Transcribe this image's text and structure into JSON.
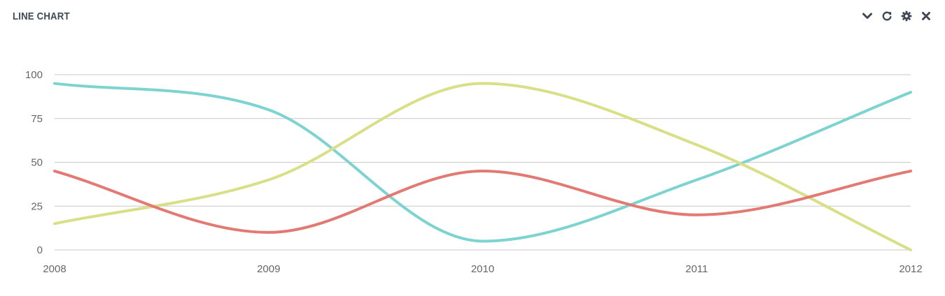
{
  "panel": {
    "title": "LINE CHART",
    "tools": [
      {
        "name": "collapse",
        "icon": "chevron-down-icon"
      },
      {
        "name": "reload",
        "icon": "reload-icon"
      },
      {
        "name": "settings",
        "icon": "gear-icon"
      },
      {
        "name": "close",
        "icon": "close-icon"
      }
    ]
  },
  "colors": {
    "title": "#3f4a55",
    "grid": "#c8c8c8",
    "tick": "#666666",
    "icon": "#3f4a55"
  },
  "chart_data": {
    "type": "line",
    "title": "",
    "xlabel": "",
    "ylabel": "",
    "x": [
      "2008",
      "2009",
      "2010",
      "2011",
      "2012"
    ],
    "ylim": [
      0,
      100
    ],
    "yticks": [
      0,
      25,
      50,
      75,
      100
    ],
    "grid": true,
    "smooth": true,
    "series": [
      {
        "color": "#7dd3d0",
        "values": [
          95,
          80,
          5,
          40,
          90
        ]
      },
      {
        "color": "#d9df87",
        "values": [
          15,
          40,
          95,
          60,
          0
        ]
      },
      {
        "color": "#e27a73",
        "values": [
          45,
          10,
          45,
          20,
          45
        ]
      }
    ]
  }
}
